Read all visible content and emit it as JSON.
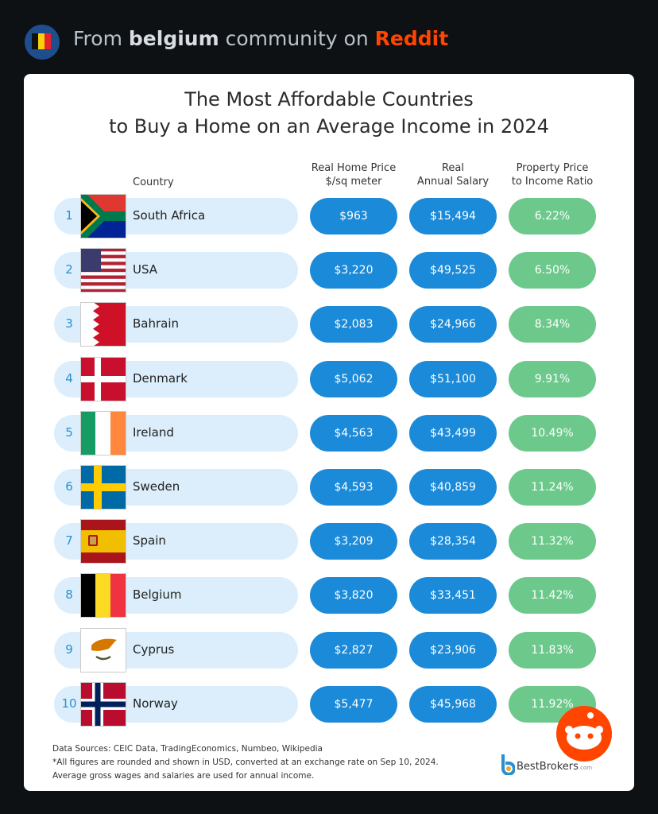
{
  "header": {
    "prefix": "From",
    "community": "belgium",
    "middle": "community on",
    "site": "Reddit"
  },
  "infographic": {
    "title_lines": [
      "The Most Affordable Countries",
      "to Buy a Home on an Average Income in 2024"
    ],
    "columns": {
      "country": "Country",
      "price": [
        "Real Home Price",
        "$/sq meter"
      ],
      "salary": [
        "Real",
        "Annual Salary"
      ],
      "ratio": [
        "Property Price",
        "to Income Ratio"
      ]
    },
    "rows": [
      {
        "rank": 1,
        "country": "South Africa",
        "price": "$963",
        "salary": "$15,494",
        "ratio": "6.22%"
      },
      {
        "rank": 2,
        "country": "USA",
        "price": "$3,220",
        "salary": "$49,525",
        "ratio": "6.50%"
      },
      {
        "rank": 3,
        "country": "Bahrain",
        "price": "$2,083",
        "salary": "$24,966",
        "ratio": "8.34%"
      },
      {
        "rank": 4,
        "country": "Denmark",
        "price": "$5,062",
        "salary": "$51,100",
        "ratio": "9.91%"
      },
      {
        "rank": 5,
        "country": "Ireland",
        "price": "$4,563",
        "salary": "$43,499",
        "ratio": "10.49%"
      },
      {
        "rank": 6,
        "country": "Sweden",
        "price": "$4,593",
        "salary": "$40,859",
        "ratio": "11.24%"
      },
      {
        "rank": 7,
        "country": "Spain",
        "price": "$3,209",
        "salary": "$28,354",
        "ratio": "11.32%"
      },
      {
        "rank": 8,
        "country": "Belgium",
        "price": "$3,820",
        "salary": "$33,451",
        "ratio": "11.42%"
      },
      {
        "rank": 9,
        "country": "Cyprus",
        "price": "$2,827",
        "salary": "$23,906",
        "ratio": "11.83%"
      },
      {
        "rank": 10,
        "country": "Norway",
        "price": "$5,477",
        "salary": "$45,968",
        "ratio": "11.92%"
      }
    ],
    "footer": [
      "Data Sources: CEIC Data, TradingEconomics, Numbeo, Wikipedia",
      "*All figures are rounded and shown in USD, converted at an exchange rate on Sep 10, 2024.",
      "Average gross wages and salaries are used for annual income."
    ],
    "logo": {
      "name": "BestBrokers",
      "suffix": ".com"
    }
  }
}
